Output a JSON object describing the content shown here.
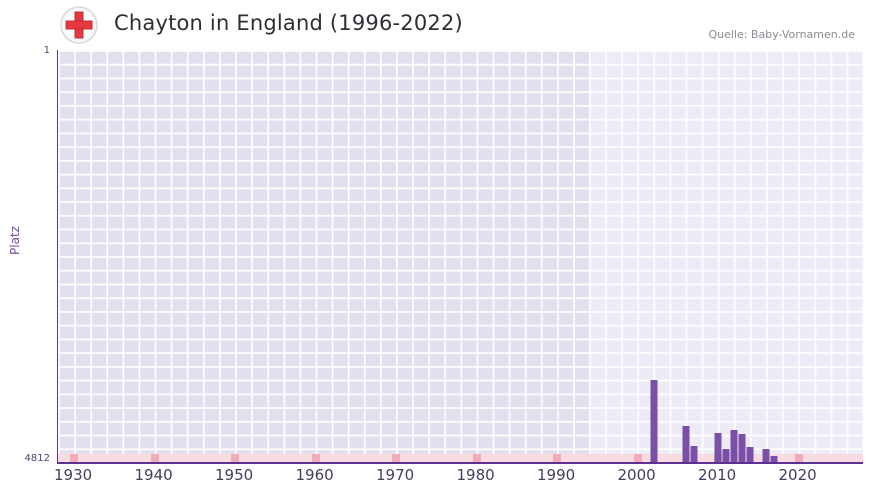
{
  "header": {
    "title": "Chayton in England (1996-2022)",
    "source": "Quelle: Baby-Vornamen.de",
    "flag": "england-flag-icon"
  },
  "y_axis": {
    "label": "Platz",
    "top_tick": "1",
    "bottom_tick": "4812"
  },
  "chart_data": {
    "type": "bar",
    "title": "Chayton in England (1996-2022)",
    "xlabel": "",
    "ylabel": "Platz",
    "y_axis": {
      "min": 1,
      "max": 4812,
      "inverted": true,
      "ticks": [
        1,
        4812
      ]
    },
    "x_axis": {
      "min": 1928,
      "max": 2028,
      "ticks": [
        1930,
        1940,
        1950,
        1960,
        1970,
        1980,
        1990,
        2000,
        2010,
        2020
      ]
    },
    "highlight_region": {
      "from": 1994,
      "to": 2028,
      "note": "data period 1996-2022"
    },
    "series": [
      {
        "name": "Platz",
        "points": [
          {
            "year": 2002,
            "rank": 3855
          },
          {
            "year": 2006,
            "rank": 4395
          },
          {
            "year": 2007,
            "rank": 4630
          },
          {
            "year": 2010,
            "rank": 4470
          },
          {
            "year": 2011,
            "rank": 4660
          },
          {
            "year": 2012,
            "rank": 4440
          },
          {
            "year": 2013,
            "rank": 4490
          },
          {
            "year": 2014,
            "rank": 4640
          },
          {
            "year": 2016,
            "rank": 4660
          },
          {
            "year": 2017,
            "rank": 4740
          }
        ]
      }
    ],
    "legend": false,
    "grid": true,
    "colors": {
      "bar": "#7a4fa8",
      "plot_background": "#e3dfee",
      "highlight_background": "#edebf6",
      "gridline": "#ffffff",
      "axis_line": "#5b3191",
      "strip": "#f9dbe2",
      "strip_mark": "#f2abb8",
      "flag_red": "#e5383f",
      "tick_text": "#463d5c"
    }
  }
}
